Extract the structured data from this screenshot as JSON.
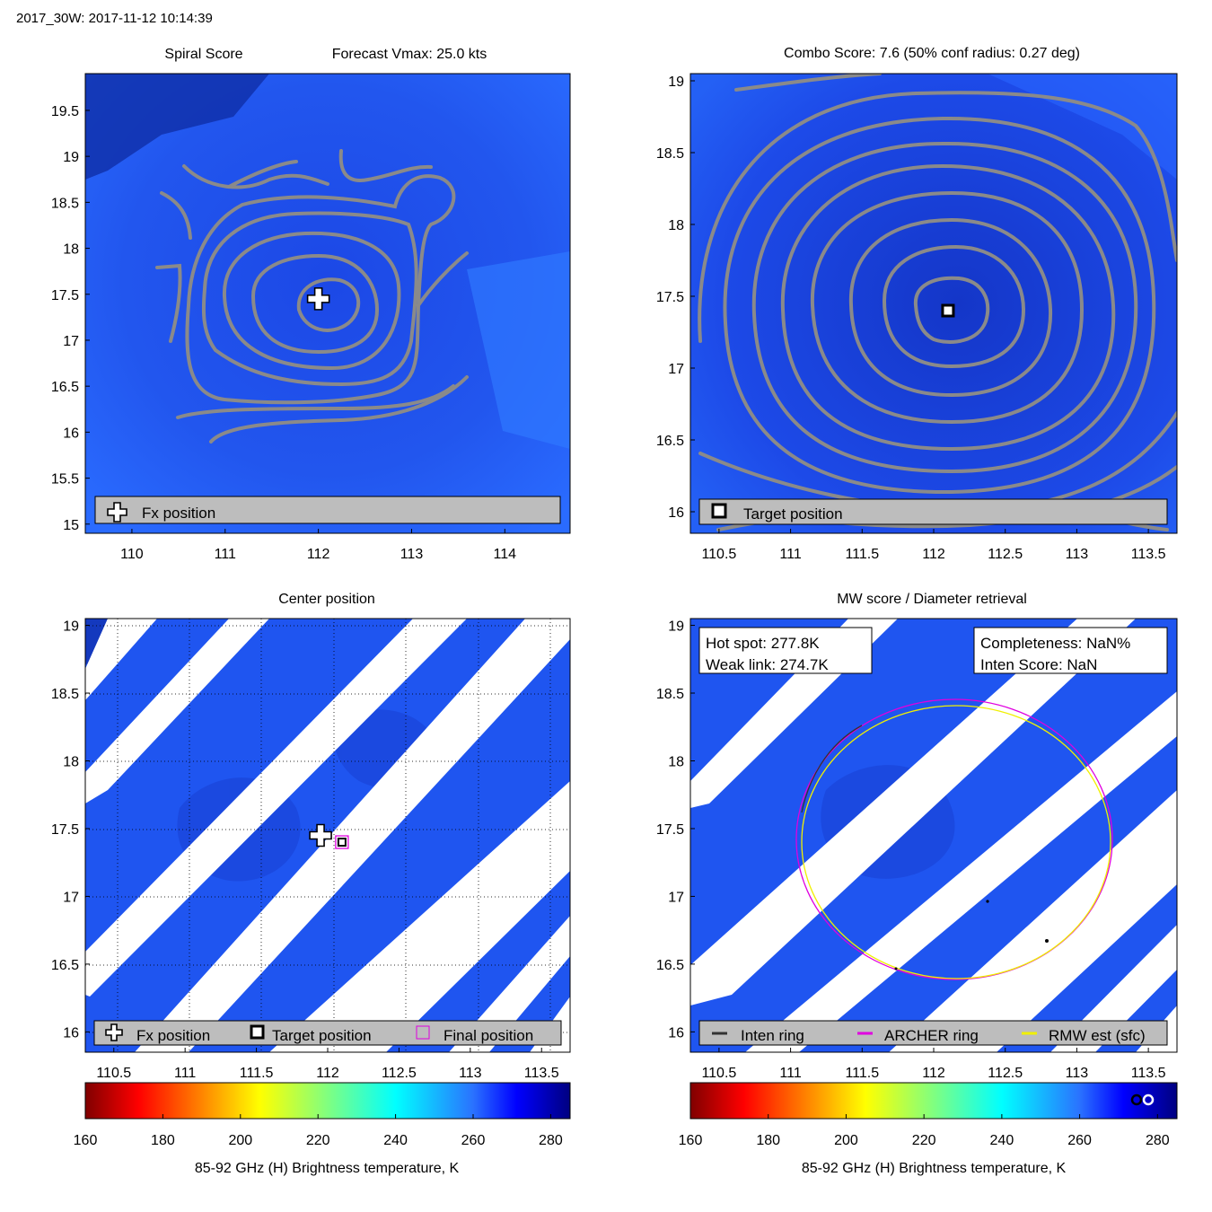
{
  "header": {
    "title": "2017_30W: 2017-11-12 10:14:39"
  },
  "colors": {
    "field_base": "#1f55f0",
    "field_dark": "#0d2fb5",
    "field_light": "#2a72ff",
    "contour": "#8a8a8a",
    "legend_bg": "#bdbdbd",
    "archer": "#e000e0",
    "rmw": "#f0f000"
  },
  "colorbar": {
    "label": "85-92 GHz (H) Brightness temperature, K",
    "ticks": [
      "160",
      "180",
      "200",
      "220",
      "240",
      "260",
      "280"
    ],
    "colormap": "jet",
    "range": [
      160,
      285
    ]
  },
  "chart_data": [
    {
      "id": "spiral",
      "type": "contour",
      "title_left": "Spiral Score",
      "title_right": "Forecast Vmax: 25.0 kts",
      "xlim": [
        109.5,
        114.7
      ],
      "ylim": [
        14.9,
        19.9
      ],
      "xticks": [
        "110",
        "111",
        "112",
        "113",
        "114"
      ],
      "yticks": [
        "15",
        "15.5",
        "16",
        "16.5",
        "17",
        "17.5",
        "18",
        "18.5",
        "19",
        "19.5"
      ],
      "markers": [
        {
          "name": "Fx position",
          "x": 112.0,
          "y": 17.45,
          "symbol": "plus"
        }
      ],
      "legend": {
        "placement": "bottom",
        "entries": [
          {
            "symbol": "plus",
            "label": "Fx position"
          }
        ]
      }
    },
    {
      "id": "combo",
      "type": "contour",
      "title": "Combo Score: 7.6  (50% conf radius: 0.27 deg)",
      "xlim": [
        110.3,
        113.7
      ],
      "ylim": [
        15.85,
        19.05
      ],
      "xticks": [
        "110.5",
        "111",
        "111.5",
        "112",
        "112.5",
        "113",
        "113.5"
      ],
      "yticks": [
        "16",
        "16.5",
        "17",
        "17.5",
        "18",
        "18.5",
        "19"
      ],
      "markers": [
        {
          "name": "Target position",
          "x": 112.1,
          "y": 17.4,
          "symbol": "square"
        }
      ],
      "legend": {
        "placement": "bottom",
        "entries": [
          {
            "symbol": "square",
            "label": "Target position"
          }
        ]
      }
    },
    {
      "id": "center",
      "type": "heatmap",
      "title": "Center position",
      "xlim": [
        110.3,
        113.7
      ],
      "ylim": [
        15.85,
        19.05
      ],
      "xticks": [
        "110.5",
        "111",
        "111.5",
        "112",
        "112.5",
        "113",
        "113.5"
      ],
      "yticks": [
        "16",
        "16.5",
        "17",
        "17.5",
        "18",
        "18.5",
        "19"
      ],
      "grid": true,
      "markers": [
        {
          "name": "Fx position",
          "x": 111.95,
          "y": 17.45,
          "symbol": "plus"
        },
        {
          "name": "Final position",
          "x": 112.1,
          "y": 17.4,
          "symbol": "magenta-square"
        }
      ],
      "legend": {
        "placement": "bottom",
        "entries": [
          {
            "symbol": "plus",
            "label": "Fx position"
          },
          {
            "symbol": "square",
            "label": "Target position"
          },
          {
            "symbol": "magenta-square",
            "label": "Final position"
          }
        ]
      }
    },
    {
      "id": "mw",
      "type": "heatmap",
      "title": "MW score / Diameter retrieval",
      "xlim": [
        110.3,
        113.7
      ],
      "ylim": [
        15.85,
        19.05
      ],
      "xticks": [
        "110.5",
        "111",
        "111.5",
        "112",
        "112.5",
        "113",
        "113.5"
      ],
      "yticks": [
        "16",
        "16.5",
        "17",
        "17.5",
        "18",
        "18.5",
        "19"
      ],
      "info_left": [
        "Hot spot: 277.8K",
        "Weak link: 274.7K"
      ],
      "info_right": [
        "Completeness: NaN%",
        "Inten Score: NaN"
      ],
      "rings": [
        {
          "name": "ARCHER ring",
          "cx": 112.1,
          "cy": 17.4,
          "rx_deg": 1.1,
          "ry_deg": 1.05
        },
        {
          "name": "RMW est (sfc)",
          "cx": 112.1,
          "cy": 17.38,
          "rx_deg": 1.08,
          "ry_deg": 1.02
        }
      ],
      "legend": {
        "placement": "bottom",
        "entries": [
          {
            "symbol": "dark-line",
            "label": "Inten ring"
          },
          {
            "symbol": "magenta-line",
            "label": "ARCHER ring"
          },
          {
            "symbol": "yellow-line",
            "label": "RMW est (sfc)"
          }
        ]
      }
    }
  ]
}
